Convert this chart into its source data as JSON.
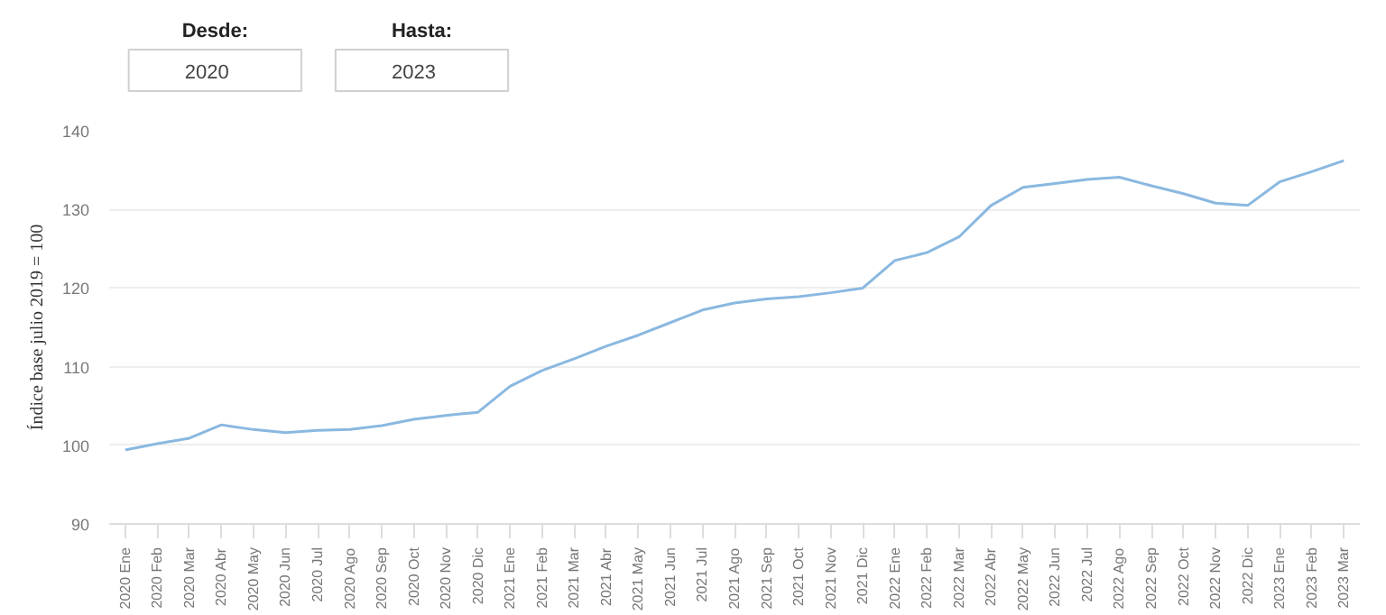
{
  "chart_data": {
    "type": "line",
    "ylabel": "Índice base julio 2019 = 100",
    "annotations": [
      "Desde:",
      "2020",
      "Hasta:",
      "2023"
    ],
    "categories": [
      "2020 Ene",
      "2020 Feb",
      "2020 Mar",
      "2020 Abr",
      "2020 May",
      "2020 Jun",
      "2020 Jul",
      "2020 Ago",
      "2020 Sep",
      "2020 Oct",
      "2020 Nov",
      "2020 Dic",
      "2021 Ene",
      "2021 Feb",
      "2021 Mar",
      "2021 Abr",
      "2021 May",
      "2021 Jun",
      "2021 Jul",
      "2021 Ago",
      "2021 Sep",
      "2021 Oct",
      "2021 Nov",
      "2021 Dic",
      "2022 Ene",
      "2022 Feb",
      "2022 Mar",
      "2022 Abr",
      "2022 May",
      "2022 Jun",
      "2022 Jul",
      "2022 Ago",
      "2022 Sep",
      "2022 Oct",
      "2022 Nov",
      "2022 Dic",
      "2023 Ene",
      "2023 Feb",
      "2023 Mar"
    ],
    "series": [
      {
        "color": "#8ab8e0",
        "values": [
          99.4,
          100.2,
          100.9,
          102.6,
          102.0,
          101.6,
          101.9,
          102.0,
          102.5,
          103.3,
          103.8,
          104.2,
          107.5,
          109.5,
          111.0,
          112.6,
          114.0,
          115.6,
          117.2,
          118.1,
          118.6,
          118.9,
          119.4,
          120.0,
          123.5,
          124.5,
          126.5,
          130.5,
          132.8,
          133.3,
          133.8,
          134.1,
          133.0,
          132.0,
          130.8,
          130.5,
          133.5,
          134.8,
          136.2
        ]
      }
    ],
    "ylim": [
      90,
      140
    ],
    "yticks": [
      90,
      100,
      110,
      120,
      130,
      140
    ],
    "grid": "y",
    "marker": "none",
    "line_style": "solid"
  }
}
